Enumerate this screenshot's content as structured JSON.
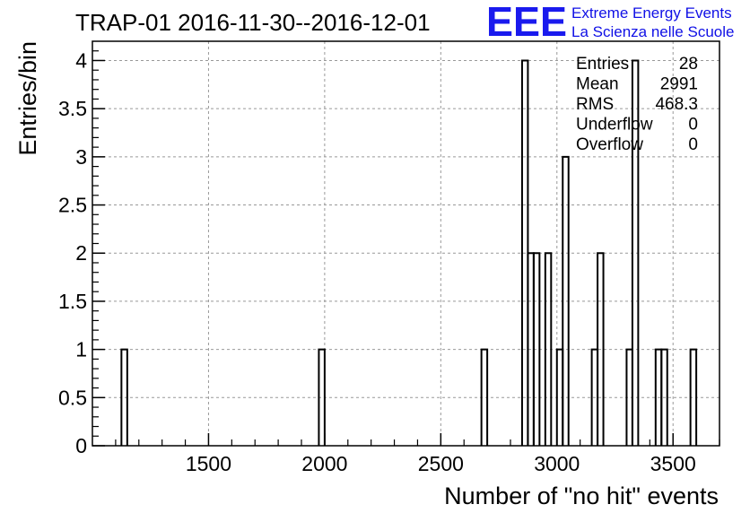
{
  "chart_data": {
    "type": "bar",
    "title": "TRAP-01 2016-11-30--2016-12-01",
    "xlabel": "Number of \"no hit\" events",
    "ylabel": "Entries/bin",
    "xlim": [
      1000,
      3700
    ],
    "ylim": [
      0,
      4.2
    ],
    "grid": true,
    "bin_width": 25,
    "xticks": [
      1500,
      2000,
      2500,
      3000,
      3500
    ],
    "yticks": [
      0,
      0.5,
      1,
      1.5,
      2,
      2.5,
      3,
      3.5,
      4
    ],
    "xtick_labels": [
      "1500",
      "2000",
      "2500",
      "3000",
      "3500"
    ],
    "ytick_labels": [
      "0",
      "0.5",
      "1",
      "1.5",
      "2",
      "2.5",
      "3",
      "3.5",
      "4"
    ],
    "bins": [
      {
        "x": 1125,
        "value": 1
      },
      {
        "x": 1975,
        "value": 1
      },
      {
        "x": 2675,
        "value": 1
      },
      {
        "x": 2850,
        "value": 4
      },
      {
        "x": 2875,
        "value": 2
      },
      {
        "x": 2900,
        "value": 2
      },
      {
        "x": 2950,
        "value": 2
      },
      {
        "x": 3000,
        "value": 1
      },
      {
        "x": 3025,
        "value": 3
      },
      {
        "x": 3150,
        "value": 1
      },
      {
        "x": 3175,
        "value": 2
      },
      {
        "x": 3300,
        "value": 1
      },
      {
        "x": 3325,
        "value": 4
      },
      {
        "x": 3425,
        "value": 1
      },
      {
        "x": 3450,
        "value": 1
      },
      {
        "x": 3575,
        "value": 1
      }
    ]
  },
  "stats_box": [
    {
      "label": "Entries",
      "value": "28"
    },
    {
      "label": "Mean",
      "value": "2991"
    },
    {
      "label": "RMS",
      "value": "468.3"
    },
    {
      "label": "Underflow",
      "value": "0"
    },
    {
      "label": "Overflow",
      "value": "0"
    }
  ],
  "logo": {
    "mark": "EEE",
    "line1": "Extreme Energy Events",
    "line2": "La Scienza nelle Scuole"
  }
}
